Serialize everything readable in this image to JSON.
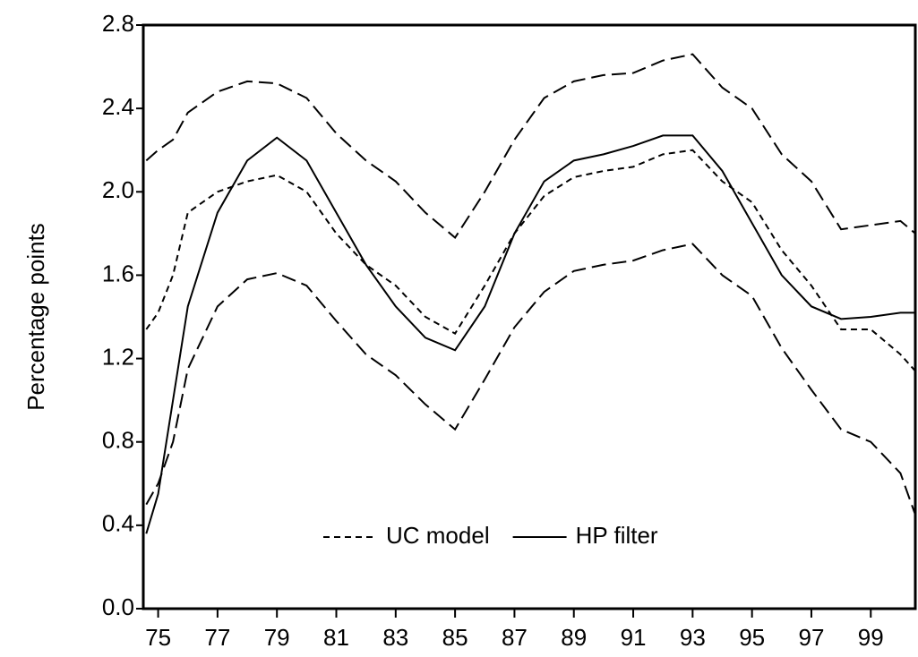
{
  "chart_data": {
    "type": "line",
    "ylabel": "Percentage points",
    "x": [
      74.6,
      75,
      75.5,
      76,
      77,
      78,
      79,
      80,
      81,
      82,
      83,
      84,
      85,
      86,
      87,
      88,
      89,
      90,
      91,
      92,
      93,
      94,
      95,
      96,
      97,
      98,
      99,
      100,
      100.5
    ],
    "series": [
      {
        "name": "UC model",
        "color": "#000000",
        "dash": "short",
        "values": [
          1.34,
          1.42,
          1.6,
          1.9,
          2.0,
          2.05,
          2.08,
          2.0,
          1.8,
          1.65,
          1.55,
          1.4,
          1.32,
          1.55,
          1.8,
          1.98,
          2.07,
          2.1,
          2.12,
          2.18,
          2.2,
          2.05,
          1.95,
          1.72,
          1.55,
          1.34,
          1.34,
          1.22,
          1.14
        ]
      },
      {
        "name": "HP filter",
        "color": "#000000",
        "dash": "solid",
        "values": [
          0.36,
          0.55,
          1.0,
          1.45,
          1.9,
          2.15,
          2.26,
          2.15,
          1.9,
          1.65,
          1.45,
          1.3,
          1.24,
          1.45,
          1.8,
          2.05,
          2.15,
          2.18,
          2.22,
          2.27,
          2.27,
          2.1,
          1.85,
          1.6,
          1.45,
          1.39,
          1.4,
          1.42,
          1.42
        ]
      },
      {
        "color": "#000000",
        "dash": "long",
        "values": [
          2.15,
          2.2,
          2.25,
          2.38,
          2.48,
          2.53,
          2.52,
          2.45,
          2.28,
          2.15,
          2.05,
          1.9,
          1.78,
          2.0,
          2.25,
          2.45,
          2.53,
          2.56,
          2.57,
          2.63,
          2.66,
          2.5,
          2.4,
          2.18,
          2.05,
          1.82,
          1.84,
          1.86,
          1.8
        ]
      },
      {
        "color": "#000000",
        "dash": "long",
        "values": [
          0.5,
          0.6,
          0.8,
          1.15,
          1.45,
          1.58,
          1.61,
          1.55,
          1.38,
          1.22,
          1.12,
          0.98,
          0.86,
          1.1,
          1.35,
          1.52,
          1.62,
          1.65,
          1.67,
          1.72,
          1.75,
          1.6,
          1.5,
          1.25,
          1.05,
          0.86,
          0.8,
          0.65,
          0.45
        ]
      }
    ],
    "xlim": [
      74.5,
      100.5
    ],
    "xticks": [
      75,
      77,
      79,
      81,
      83,
      85,
      87,
      89,
      91,
      93,
      95,
      97,
      99
    ],
    "ylim": [
      0,
      2.8
    ],
    "yticks": [
      {
        "value": 0,
        "label": "0.0"
      },
      0.4,
      0.8,
      1.2,
      1.6,
      {
        "value": 2,
        "label": "2.0"
      },
      2.4,
      2.8
    ],
    "grid": false,
    "legend": "lower center"
  }
}
